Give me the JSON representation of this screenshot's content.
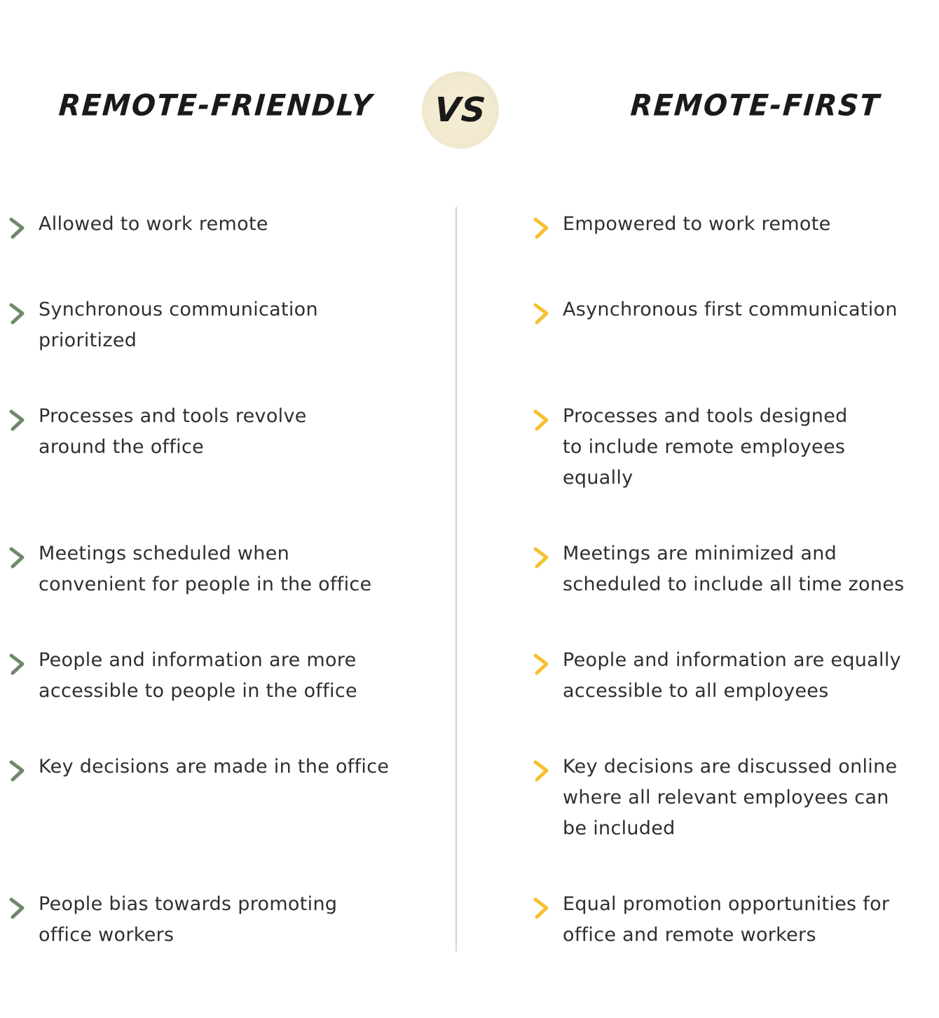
{
  "left_column": {
    "heading": "REMOTE-FRIENDLY",
    "accent_color": "#6f8a6a",
    "items": [
      [
        "Allowed to work remote"
      ],
      [
        "Synchronous communication",
        "prioritized"
      ],
      [
        "Processes and tools revolve",
        "around the office"
      ],
      [
        "Meetings scheduled when",
        "convenient for people in the office"
      ],
      [
        "People and information are more",
        "accessible to people in the office"
      ],
      [
        "Key decisions are made in the office"
      ],
      [
        "People bias towards promoting",
        "office workers"
      ]
    ]
  },
  "vs_label": "VS",
  "right_column": {
    "heading": "REMOTE-FIRST",
    "accent_color": "#f5c130",
    "items": [
      [
        "Empowered to work remote"
      ],
      [
        "Asynchronous first communication"
      ],
      [
        "Processes and tools designed",
        "to include remote employees",
        "equally"
      ],
      [
        "Meetings are minimized and",
        "scheduled to include all time zones"
      ],
      [
        "People and information are equally",
        "accessible to all employees"
      ],
      [
        "Key decisions are discussed online",
        "where all relevant employees can",
        "be included"
      ],
      [
        "Equal promotion opportunities for",
        "office and remote workers"
      ]
    ]
  }
}
